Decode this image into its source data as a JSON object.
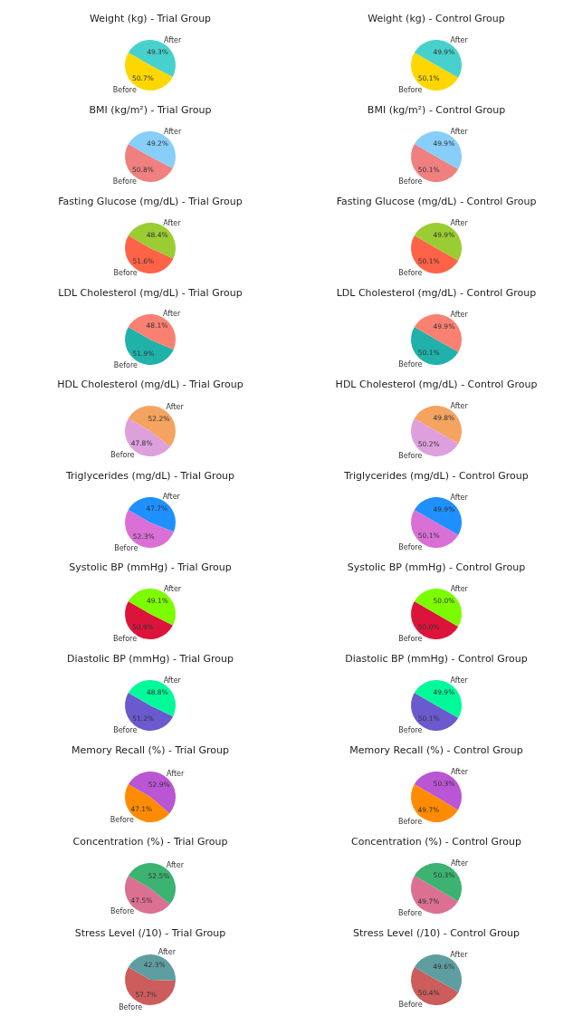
{
  "chart_data": [
    {
      "type": "pie",
      "title": "Weight (kg) - Trial Group",
      "categories": [
        "Before",
        "After"
      ],
      "values": [
        50.7,
        49.3
      ],
      "colors": [
        "#ffd700",
        "#48d1cc"
      ],
      "value_labels": [
        "50.7%",
        "49.3%"
      ]
    },
    {
      "type": "pie",
      "title": "Weight (kg) - Control Group",
      "categories": [
        "Before",
        "After"
      ],
      "values": [
        50.1,
        49.9
      ],
      "colors": [
        "#ffd700",
        "#48d1cc"
      ],
      "value_labels": [
        "50.1%",
        "49.9%"
      ]
    },
    {
      "type": "pie",
      "title": "BMI (kg/m²) - Trial Group",
      "categories": [
        "Before",
        "After"
      ],
      "values": [
        50.8,
        49.2
      ],
      "colors": [
        "#f08080",
        "#87cefa"
      ],
      "value_labels": [
        "50.8%",
        "49.2%"
      ]
    },
    {
      "type": "pie",
      "title": "BMI (kg/m²) - Control Group",
      "categories": [
        "Before",
        "After"
      ],
      "values": [
        50.1,
        49.9
      ],
      "colors": [
        "#f08080",
        "#87cefa"
      ],
      "value_labels": [
        "50.1%",
        "49.9%"
      ]
    },
    {
      "type": "pie",
      "title": "Fasting Glucose (mg/dL) - Trial Group",
      "categories": [
        "Before",
        "After"
      ],
      "values": [
        51.6,
        48.4
      ],
      "colors": [
        "#ff6347",
        "#9acd32"
      ],
      "value_labels": [
        "51.6%",
        "48.4%"
      ]
    },
    {
      "type": "pie",
      "title": "Fasting Glucose (mg/dL) - Control Group",
      "categories": [
        "Before",
        "After"
      ],
      "values": [
        50.1,
        49.9
      ],
      "colors": [
        "#ff6347",
        "#9acd32"
      ],
      "value_labels": [
        "50.1%",
        "49.9%"
      ]
    },
    {
      "type": "pie",
      "title": "LDL Cholesterol (mg/dL) - Trial Group",
      "categories": [
        "Before",
        "After"
      ],
      "values": [
        51.9,
        48.1
      ],
      "colors": [
        "#20b2aa",
        "#fa8072"
      ],
      "value_labels": [
        "51.9%",
        "48.1%"
      ]
    },
    {
      "type": "pie",
      "title": "LDL Cholesterol (mg/dL) - Control Group",
      "categories": [
        "Before",
        "After"
      ],
      "values": [
        50.1,
        49.9
      ],
      "colors": [
        "#20b2aa",
        "#fa8072"
      ],
      "value_labels": [
        "50.1%",
        "49.9%"
      ]
    },
    {
      "type": "pie",
      "title": "HDL Cholesterol (mg/dL) - Trial Group",
      "categories": [
        "Before",
        "After"
      ],
      "values": [
        47.8,
        52.2
      ],
      "colors": [
        "#dda0dd",
        "#f4a460"
      ],
      "value_labels": [
        "47.8%",
        "52.2%"
      ]
    },
    {
      "type": "pie",
      "title": "HDL Cholesterol (mg/dL) - Control Group",
      "categories": [
        "Before",
        "After"
      ],
      "values": [
        50.2,
        49.8
      ],
      "colors": [
        "#dda0dd",
        "#f4a460"
      ],
      "value_labels": [
        "50.2%",
        "49.8%"
      ]
    },
    {
      "type": "pie",
      "title": "Triglycerides (mg/dL) - Trial Group",
      "categories": [
        "Before",
        "After"
      ],
      "values": [
        52.3,
        47.7
      ],
      "colors": [
        "#da70d6",
        "#1e90ff"
      ],
      "value_labels": [
        "52.3%",
        "47.7%"
      ]
    },
    {
      "type": "pie",
      "title": "Triglycerides (mg/dL) - Control Group",
      "categories": [
        "Before",
        "After"
      ],
      "values": [
        50.1,
        49.9
      ],
      "colors": [
        "#da70d6",
        "#1e90ff"
      ],
      "value_labels": [
        "50.1%",
        "49.9%"
      ]
    },
    {
      "type": "pie",
      "title": "Systolic BP (mmHg) - Trial Group",
      "categories": [
        "Before",
        "After"
      ],
      "values": [
        50.9,
        49.1
      ],
      "colors": [
        "#dc143c",
        "#7cfc00"
      ],
      "value_labels": [
        "50.9%",
        "49.1%"
      ]
    },
    {
      "type": "pie",
      "title": "Systolic BP (mmHg) - Control Group",
      "categories": [
        "Before",
        "After"
      ],
      "values": [
        50.0,
        50.0
      ],
      "colors": [
        "#dc143c",
        "#7cfc00"
      ],
      "value_labels": [
        "50.0%",
        "50.0%"
      ]
    },
    {
      "type": "pie",
      "title": "Diastolic BP (mmHg) - Trial Group",
      "categories": [
        "Before",
        "After"
      ],
      "values": [
        51.2,
        48.8
      ],
      "colors": [
        "#6a5acd",
        "#00fa9a"
      ],
      "value_labels": [
        "51.2%",
        "48.8%"
      ]
    },
    {
      "type": "pie",
      "title": "Diastolic BP (mmHg) - Control Group",
      "categories": [
        "Before",
        "After"
      ],
      "values": [
        50.1,
        49.9
      ],
      "colors": [
        "#6a5acd",
        "#00fa9a"
      ],
      "value_labels": [
        "50.1%",
        "49.9%"
      ]
    },
    {
      "type": "pie",
      "title": "Memory Recall (%) - Trial Group",
      "categories": [
        "Before",
        "After"
      ],
      "values": [
        47.1,
        52.9
      ],
      "colors": [
        "#ff8c00",
        "#ba55d3"
      ],
      "value_labels": [
        "47.1%",
        "52.9%"
      ]
    },
    {
      "type": "pie",
      "title": "Memory Recall (%) - Control Group",
      "categories": [
        "Before",
        "After"
      ],
      "values": [
        49.7,
        50.3
      ],
      "colors": [
        "#ff8c00",
        "#ba55d3"
      ],
      "value_labels": [
        "49.7%",
        "50.3%"
      ]
    },
    {
      "type": "pie",
      "title": "Concentration (%) - Trial Group",
      "categories": [
        "Before",
        "After"
      ],
      "values": [
        47.5,
        52.5
      ],
      "colors": [
        "#db7093",
        "#3cb371"
      ],
      "value_labels": [
        "47.5%",
        "52.5%"
      ]
    },
    {
      "type": "pie",
      "title": "Concentration (%) - Control Group",
      "categories": [
        "Before",
        "After"
      ],
      "values": [
        49.7,
        50.3
      ],
      "colors": [
        "#db7093",
        "#3cb371"
      ],
      "value_labels": [
        "49.7%",
        "50.3%"
      ]
    },
    {
      "type": "pie",
      "title": "Stress Level (/10) - Trial Group",
      "categories": [
        "Before",
        "After"
      ],
      "values": [
        57.7,
        42.3
      ],
      "colors": [
        "#cd5c5c",
        "#5f9ea0"
      ],
      "value_labels": [
        "57.7%",
        "42.3%"
      ]
    },
    {
      "type": "pie",
      "title": "Stress Level (/10) - Control Group",
      "categories": [
        "Before",
        "After"
      ],
      "values": [
        50.4,
        49.6
      ],
      "colors": [
        "#cd5c5c",
        "#5f9ea0"
      ],
      "value_labels": [
        "50.4%",
        "49.6%"
      ]
    }
  ]
}
